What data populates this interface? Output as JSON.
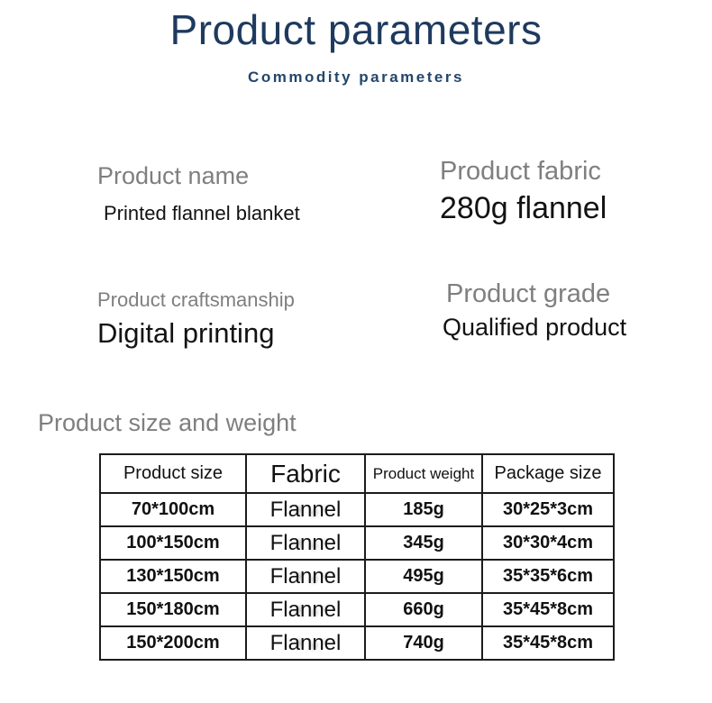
{
  "page": {
    "title": "Product parameters",
    "subtitle": "Commodity parameters"
  },
  "specs": {
    "name": {
      "label": "Product name",
      "value": "Printed flannel blanket"
    },
    "fabric": {
      "label": "Product fabric",
      "value": "280g flannel"
    },
    "craft": {
      "label": "Product craftsmanship",
      "value": "Digital printing"
    },
    "grade": {
      "label": "Product grade",
      "value": "Qualified product"
    }
  },
  "size_section": {
    "heading": "Product size and weight",
    "table": {
      "headers": [
        "Product size",
        "Fabric",
        "Product weight",
        "Package size"
      ],
      "rows": [
        [
          "70*100cm",
          "Flannel",
          "185g",
          "30*25*3cm"
        ],
        [
          "100*150cm",
          "Flannel",
          "345g",
          "30*30*4cm"
        ],
        [
          "130*150cm",
          "Flannel",
          "495g",
          "35*35*6cm"
        ],
        [
          "150*180cm",
          "Flannel",
          "660g",
          "35*45*8cm"
        ],
        [
          "150*200cm",
          "Flannel",
          "740g",
          "35*45*8cm"
        ]
      ]
    }
  },
  "colors": {
    "title_navy": "#1e3a5e",
    "label_gray": "#7f7f7f",
    "value_black": "#121212",
    "table_border": "#1c1c1c"
  }
}
